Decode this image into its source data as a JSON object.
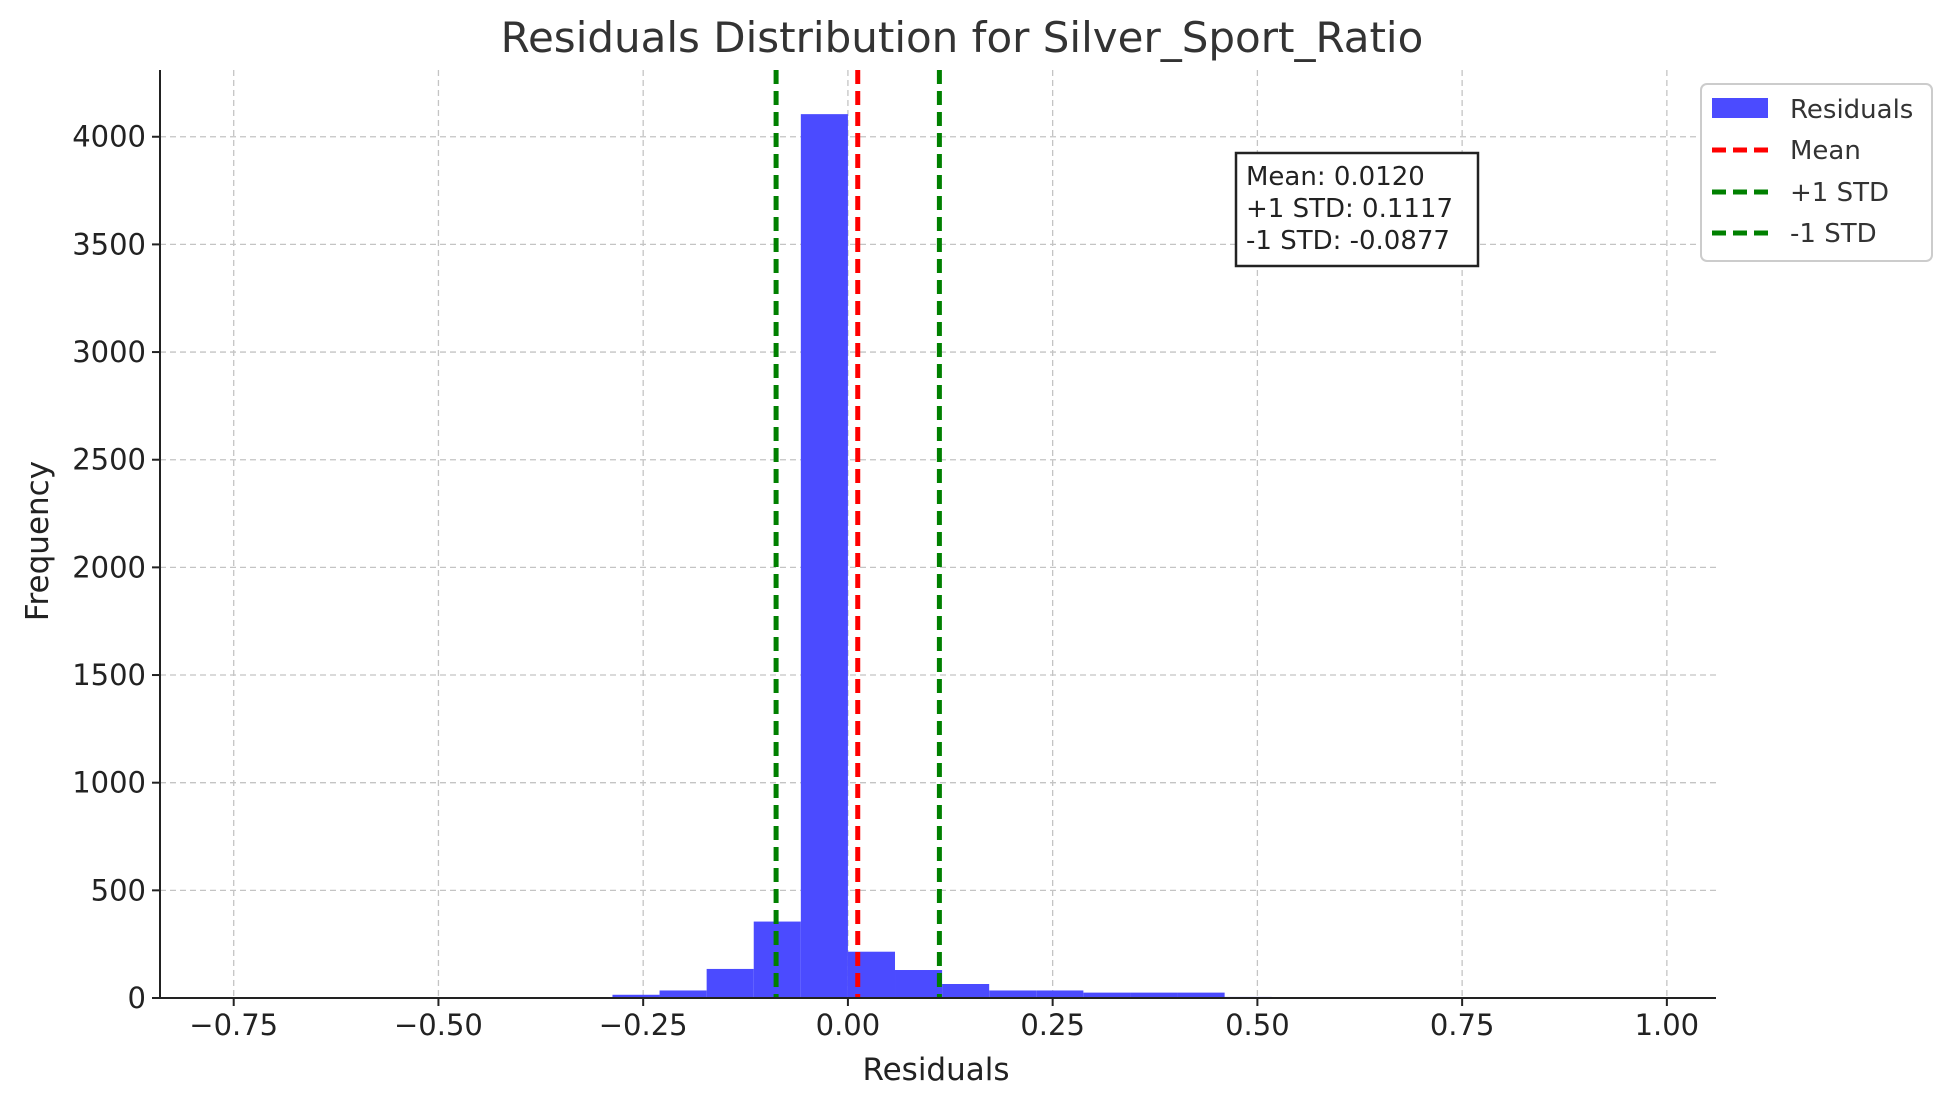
{
  "chart_data": {
    "type": "bar",
    "title": "Residuals Distribution for Silver_Sport_Ratio",
    "xlabel": "Residuals",
    "ylabel": "Frequency",
    "xlim": [
      -0.84,
      1.06
    ],
    "ylim": [
      0,
      4310
    ],
    "xticks": [
      -0.75,
      -0.5,
      -0.25,
      0.0,
      0.25,
      0.5,
      0.75,
      1.0
    ],
    "xtick_labels": [
      "−0.75",
      "−0.50",
      "−0.25",
      "0.00",
      "0.25",
      "0.50",
      "0.75",
      "1.00"
    ],
    "yticks": [
      0,
      500,
      1000,
      1500,
      2000,
      2500,
      3000,
      3500,
      4000
    ],
    "ytick_labels": [
      "0",
      "500",
      "1000",
      "1500",
      "2000",
      "2500",
      "3000",
      "3500",
      "4000"
    ],
    "grid": true,
    "bins": {
      "start": -0.2875,
      "width": 0.0575,
      "counts": [
        15,
        35,
        135,
        355,
        4105,
        215,
        130,
        65,
        35,
        35,
        25,
        25,
        25,
        5
      ]
    },
    "vlines": [
      {
        "label": "Mean",
        "x": 0.012,
        "color": "#ff0000"
      },
      {
        "label": "+1 STD",
        "x": 0.1117,
        "color": "#008000"
      },
      {
        "label": "-1 STD",
        "x": -0.0877,
        "color": "#008000"
      }
    ],
    "bar_color": "#4b4bff",
    "legend": {
      "position": "top-right-outside",
      "entries": [
        {
          "label": "Residuals",
          "kind": "patch",
          "color": "#4b4bff"
        },
        {
          "label": "Mean",
          "kind": "dashed",
          "color": "#ff0000"
        },
        {
          "label": "+1 STD",
          "kind": "dashed",
          "color": "#008000"
        },
        {
          "label": "-1 STD",
          "kind": "dashed",
          "color": "#008000"
        }
      ]
    },
    "annotation": [
      "Mean: 0.0120",
      "+1 STD: 0.1117",
      "-1 STD: -0.0877"
    ]
  }
}
